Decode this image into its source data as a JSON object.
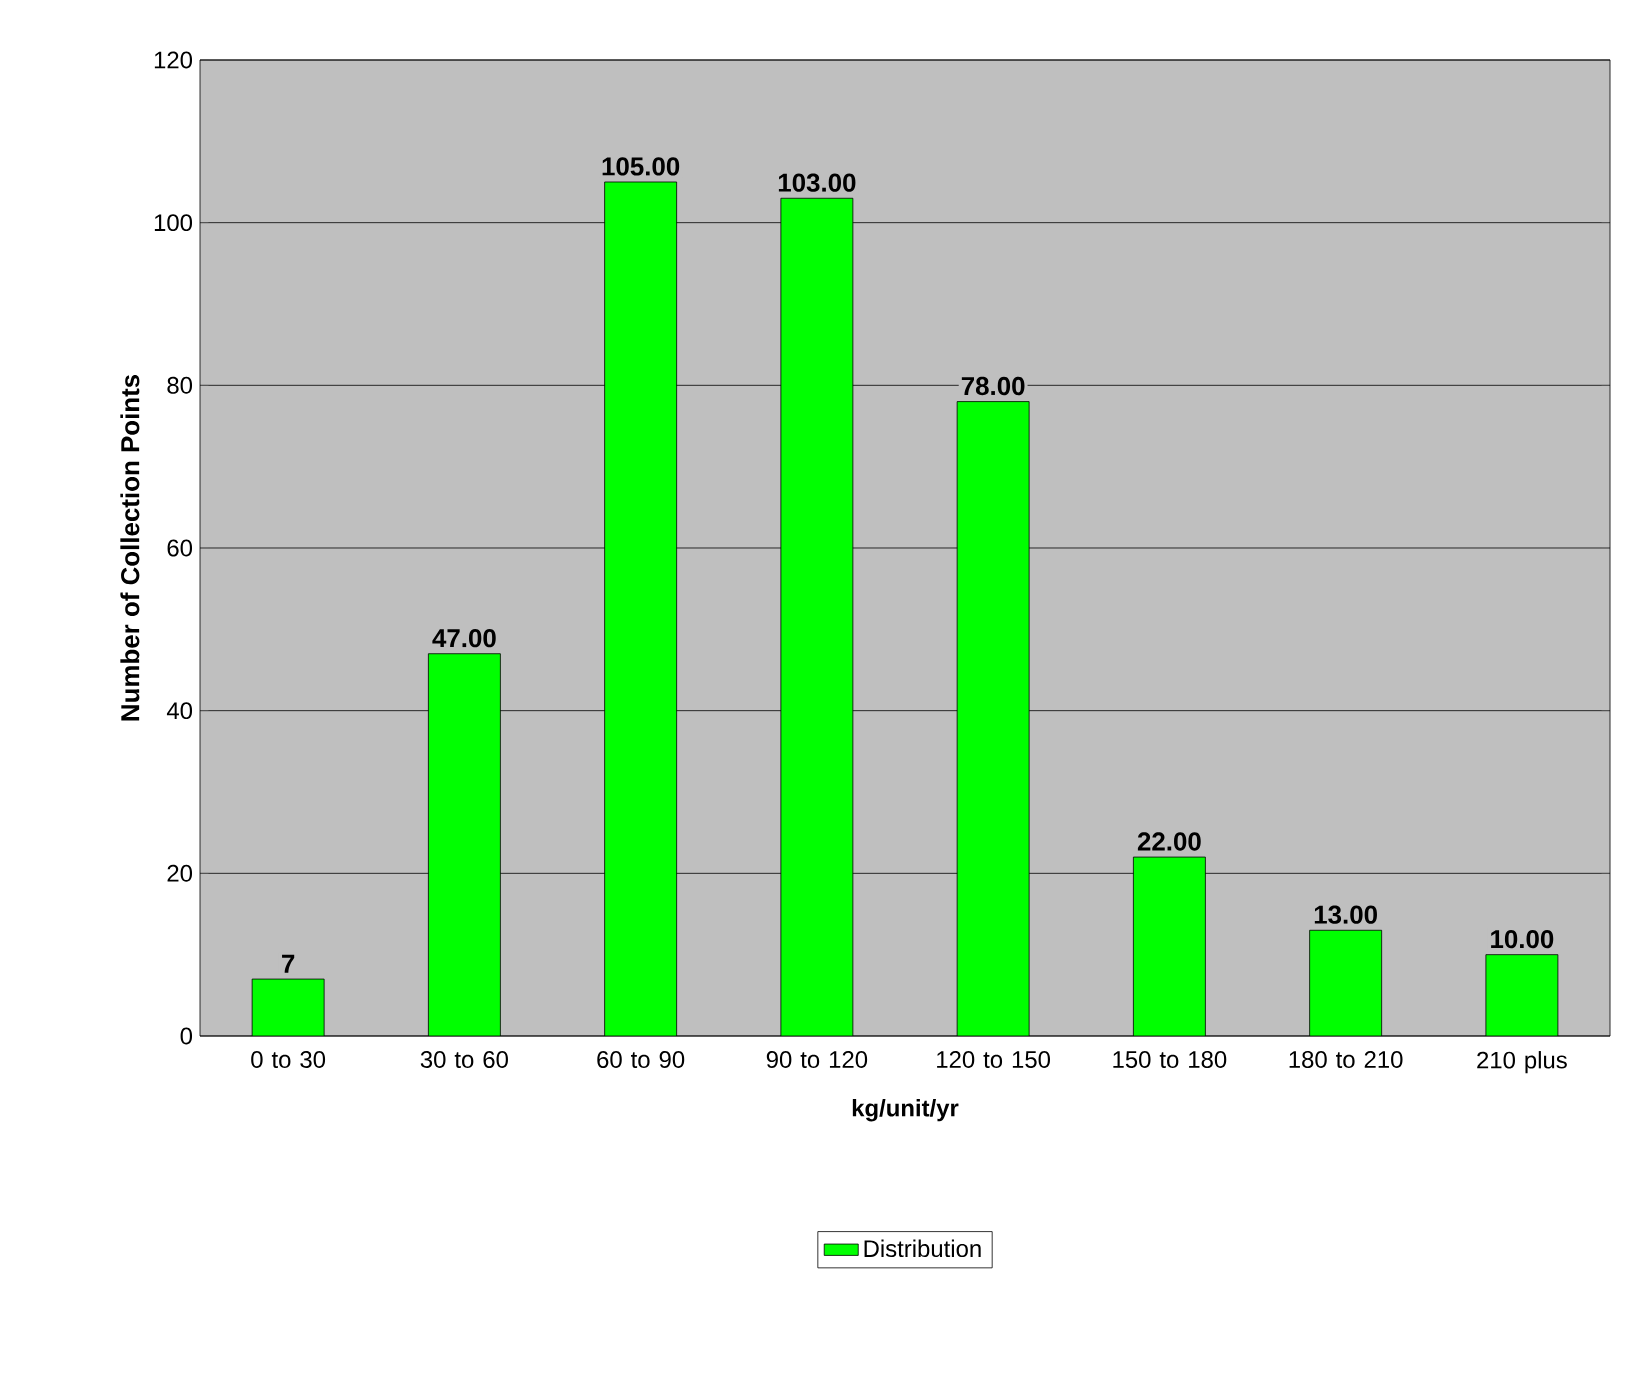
{
  "chart_data": {
    "type": "bar",
    "xlabel": "kg/unit/yr",
    "ylabel": "Number of Collection Points",
    "categories": [
      "0 to 30",
      "30 to 60",
      "60 to 90",
      "90 to 120",
      "120 to 150",
      "150 to 180",
      "180 to 210",
      "210 plus"
    ],
    "series": [
      {
        "name": "Distribution",
        "color": "#00ff00",
        "values": [
          7,
          47,
          105,
          103,
          78,
          22,
          13,
          10
        ],
        "value_labels": [
          "7",
          "47.00",
          "105.00",
          "103.00",
          "78.00",
          "22.00",
          "13.00",
          "10.00"
        ]
      }
    ],
    "ylim": [
      0,
      120
    ],
    "yticks": [
      0,
      20,
      40,
      60,
      80,
      100,
      120
    ],
    "grid": "y",
    "legend": "bottom"
  }
}
